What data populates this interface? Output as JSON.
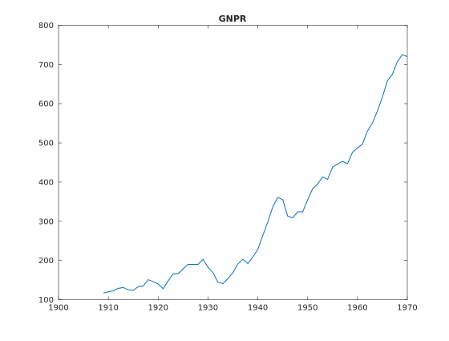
{
  "chart_data": {
    "type": "line",
    "title": "GNPR",
    "xlabel": "",
    "ylabel": "",
    "xlim": [
      1900,
      1970
    ],
    "ylim": [
      100,
      800
    ],
    "xticks": [
      1900,
      1910,
      1920,
      1930,
      1940,
      1950,
      1960,
      1970
    ],
    "yticks": [
      100,
      200,
      300,
      400,
      500,
      600,
      700,
      800
    ],
    "grid": false,
    "legend": "none",
    "series": [
      {
        "color": "#0072bd",
        "x": [
          1909,
          1910,
          1911,
          1912,
          1913,
          1914,
          1915,
          1916,
          1917,
          1918,
          1919,
          1920,
          1921,
          1922,
          1923,
          1924,
          1925,
          1926,
          1927,
          1928,
          1929,
          1930,
          1931,
          1932,
          1933,
          1934,
          1935,
          1936,
          1937,
          1938,
          1939,
          1940,
          1941,
          1942,
          1943,
          1944,
          1945,
          1946,
          1947,
          1948,
          1949,
          1950,
          1951,
          1952,
          1953,
          1954,
          1955,
          1956,
          1957,
          1958,
          1959,
          1960,
          1961,
          1962,
          1963,
          1964,
          1965,
          1966,
          1967,
          1968,
          1969,
          1970
        ],
        "y": [
          117,
          120,
          123,
          129,
          131,
          125,
          124,
          133,
          135,
          151,
          146,
          140,
          128,
          148,
          166,
          166,
          179,
          190,
          190,
          190,
          203,
          183,
          169,
          144,
          141,
          154,
          169,
          191,
          203,
          192,
          209,
          228,
          264,
          298,
          337,
          361,
          355,
          313,
          309,
          324,
          324,
          355,
          383,
          395,
          413,
          407,
          438,
          446,
          453,
          447,
          476,
          487,
          497,
          530,
          551,
          581,
          617,
          658,
          675,
          707,
          725,
          720
        ]
      }
    ]
  }
}
